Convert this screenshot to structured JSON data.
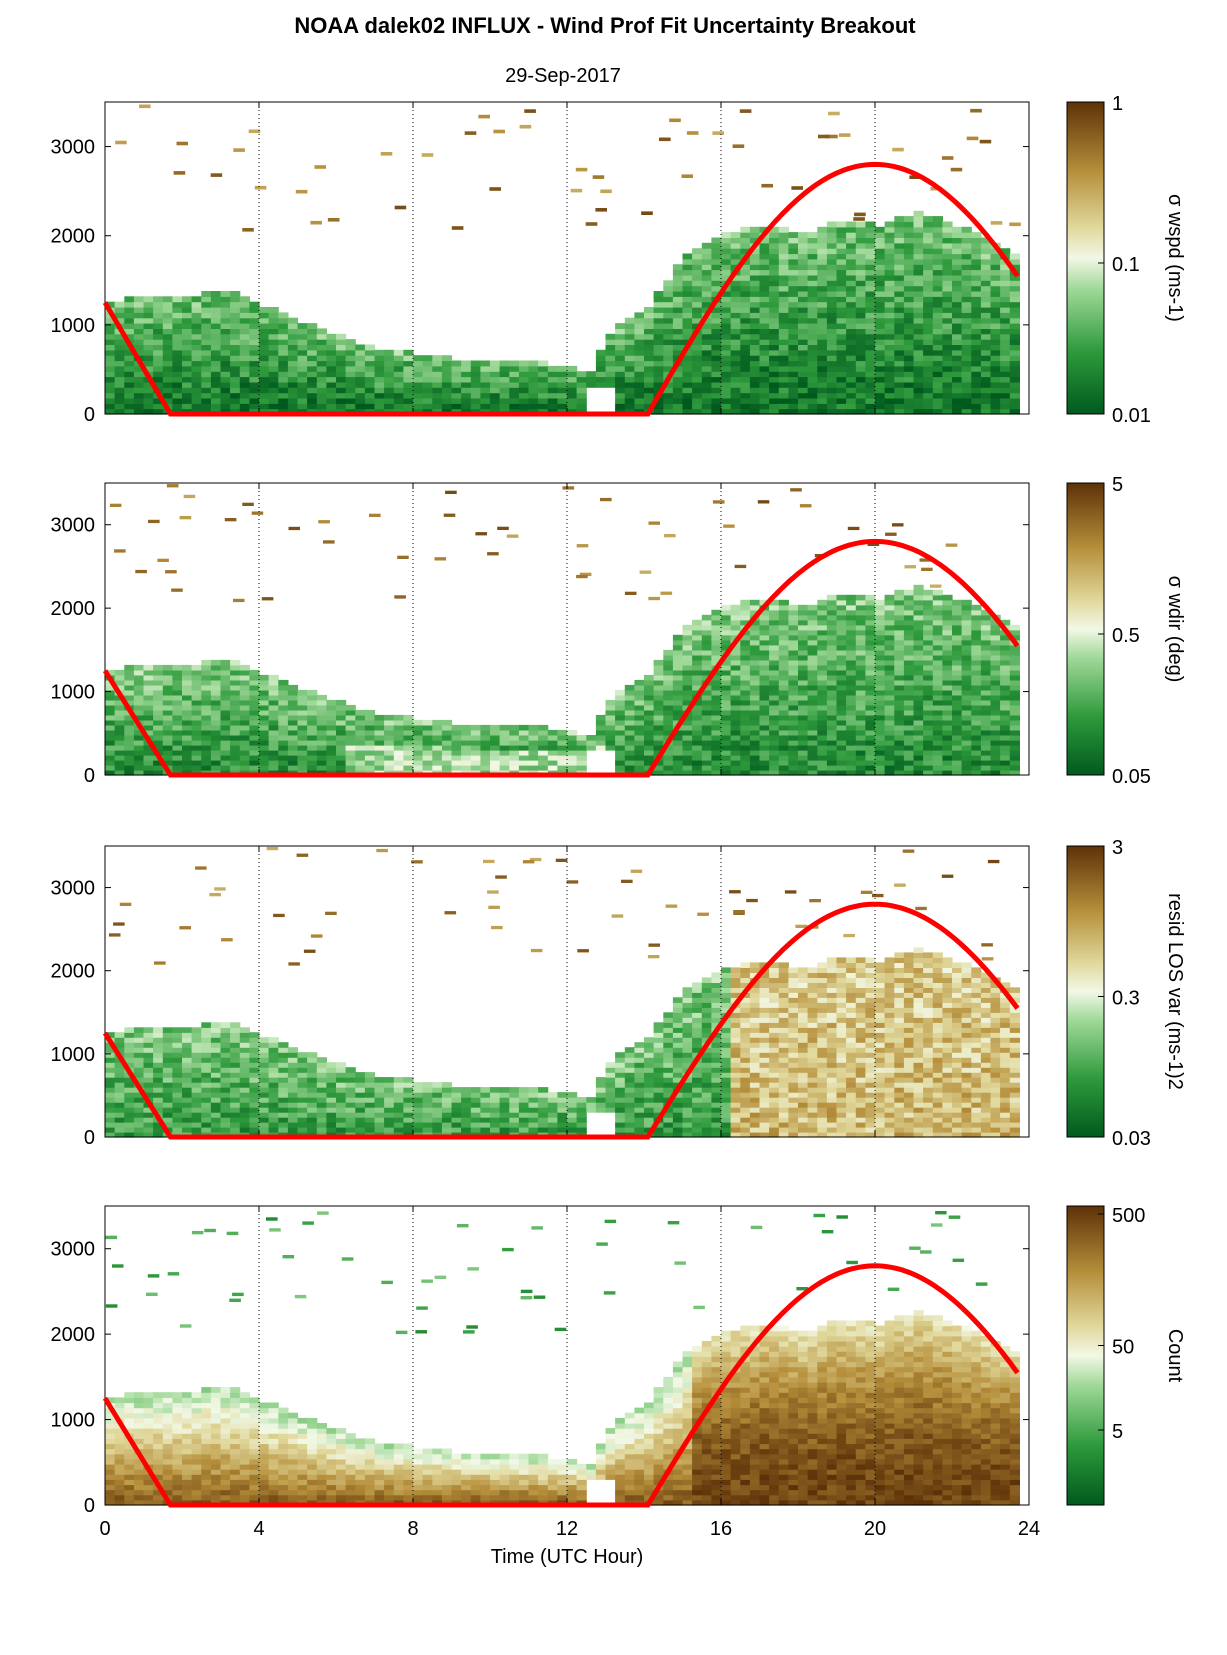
{
  "title": "NOAA dalek02 INFLUX - Wind Prof Fit Uncertainty Breakout",
  "subtitle": "29-Sep-2017",
  "chart_data": [
    {
      "type": "heatmap",
      "x_range": [
        0,
        24
      ],
      "x_ticks": [
        "0",
        "4",
        "8",
        "12",
        "16",
        "20",
        "24"
      ],
      "xlabel": "",
      "y_range": [
        0,
        3500
      ],
      "y_ticks": [
        "0",
        "1000",
        "2000",
        "3000"
      ],
      "grid": "vertical dotted lines at 4, 8, 12, 16, 20",
      "colorbar": {
        "label": "σ wspd (ms-1)",
        "ticks": [
          "1",
          "0.1",
          "0.01"
        ],
        "scale": "log",
        "range": [
          0.01,
          1
        ]
      },
      "overlay_line": {
        "color": "#ff0000",
        "x": [
          0,
          1.7,
          14.1,
          20.0,
          23.8
        ],
        "y": [
          1250,
          0,
          0,
          2800,
          1450
        ]
      }
    },
    {
      "type": "heatmap",
      "x_range": [
        0,
        24
      ],
      "x_ticks": [
        "0",
        "4",
        "8",
        "12",
        "16",
        "20",
        "24"
      ],
      "xlabel": "",
      "y_range": [
        0,
        3500
      ],
      "y_ticks": [
        "0",
        "1000",
        "2000",
        "3000"
      ],
      "grid": "vertical dotted lines at 4, 8, 12, 16, 20",
      "colorbar": {
        "label": "σ wdir (deg)",
        "ticks": [
          "5",
          "0.5",
          "0.05"
        ],
        "scale": "log",
        "range": [
          0.05,
          5
        ]
      },
      "overlay_line": {
        "color": "#ff0000",
        "x": [
          0,
          1.7,
          14.1,
          20.0,
          23.8
        ],
        "y": [
          1250,
          0,
          0,
          2800,
          1450
        ]
      }
    },
    {
      "type": "heatmap",
      "x_range": [
        0,
        24
      ],
      "x_ticks": [
        "0",
        "4",
        "8",
        "12",
        "16",
        "20",
        "24"
      ],
      "xlabel": "",
      "y_range": [
        0,
        3500
      ],
      "y_ticks": [
        "0",
        "1000",
        "2000",
        "3000"
      ],
      "grid": "vertical dotted lines at 4, 8, 12, 16, 20",
      "colorbar": {
        "label": "resid LOS var (ms-1)2",
        "ticks": [
          "3",
          "0.3",
          "0.03"
        ],
        "scale": "log",
        "range": [
          0.03,
          3
        ]
      },
      "overlay_line": {
        "color": "#ff0000",
        "x": [
          0,
          1.7,
          14.1,
          20.0,
          23.8
        ],
        "y": [
          1250,
          0,
          0,
          2800,
          1450
        ]
      }
    },
    {
      "type": "heatmap",
      "x_range": [
        0,
        24
      ],
      "x_ticks": [
        "0",
        "4",
        "8",
        "12",
        "16",
        "20",
        "24"
      ],
      "xlabel": "Time (UTC Hour)",
      "y_range": [
        0,
        3500
      ],
      "y_ticks": [
        "0",
        "1000",
        "2000",
        "3000"
      ],
      "grid": "vertical dotted lines at 4, 8, 12, 16, 20",
      "colorbar": {
        "label": "Count",
        "ticks": [
          "500",
          "50",
          "5"
        ],
        "scale": "log"
      },
      "overlay_line": {
        "color": "#ff0000",
        "x": [
          0,
          1.7,
          14.1,
          20.0,
          23.8
        ],
        "y": [
          1250,
          0,
          0,
          2800,
          1450
        ]
      }
    }
  ],
  "colors": {
    "low": "#0a6b2a",
    "mid": "#f5f7e8",
    "high": "#6b3a0c",
    "overlay": "#ff0000"
  }
}
